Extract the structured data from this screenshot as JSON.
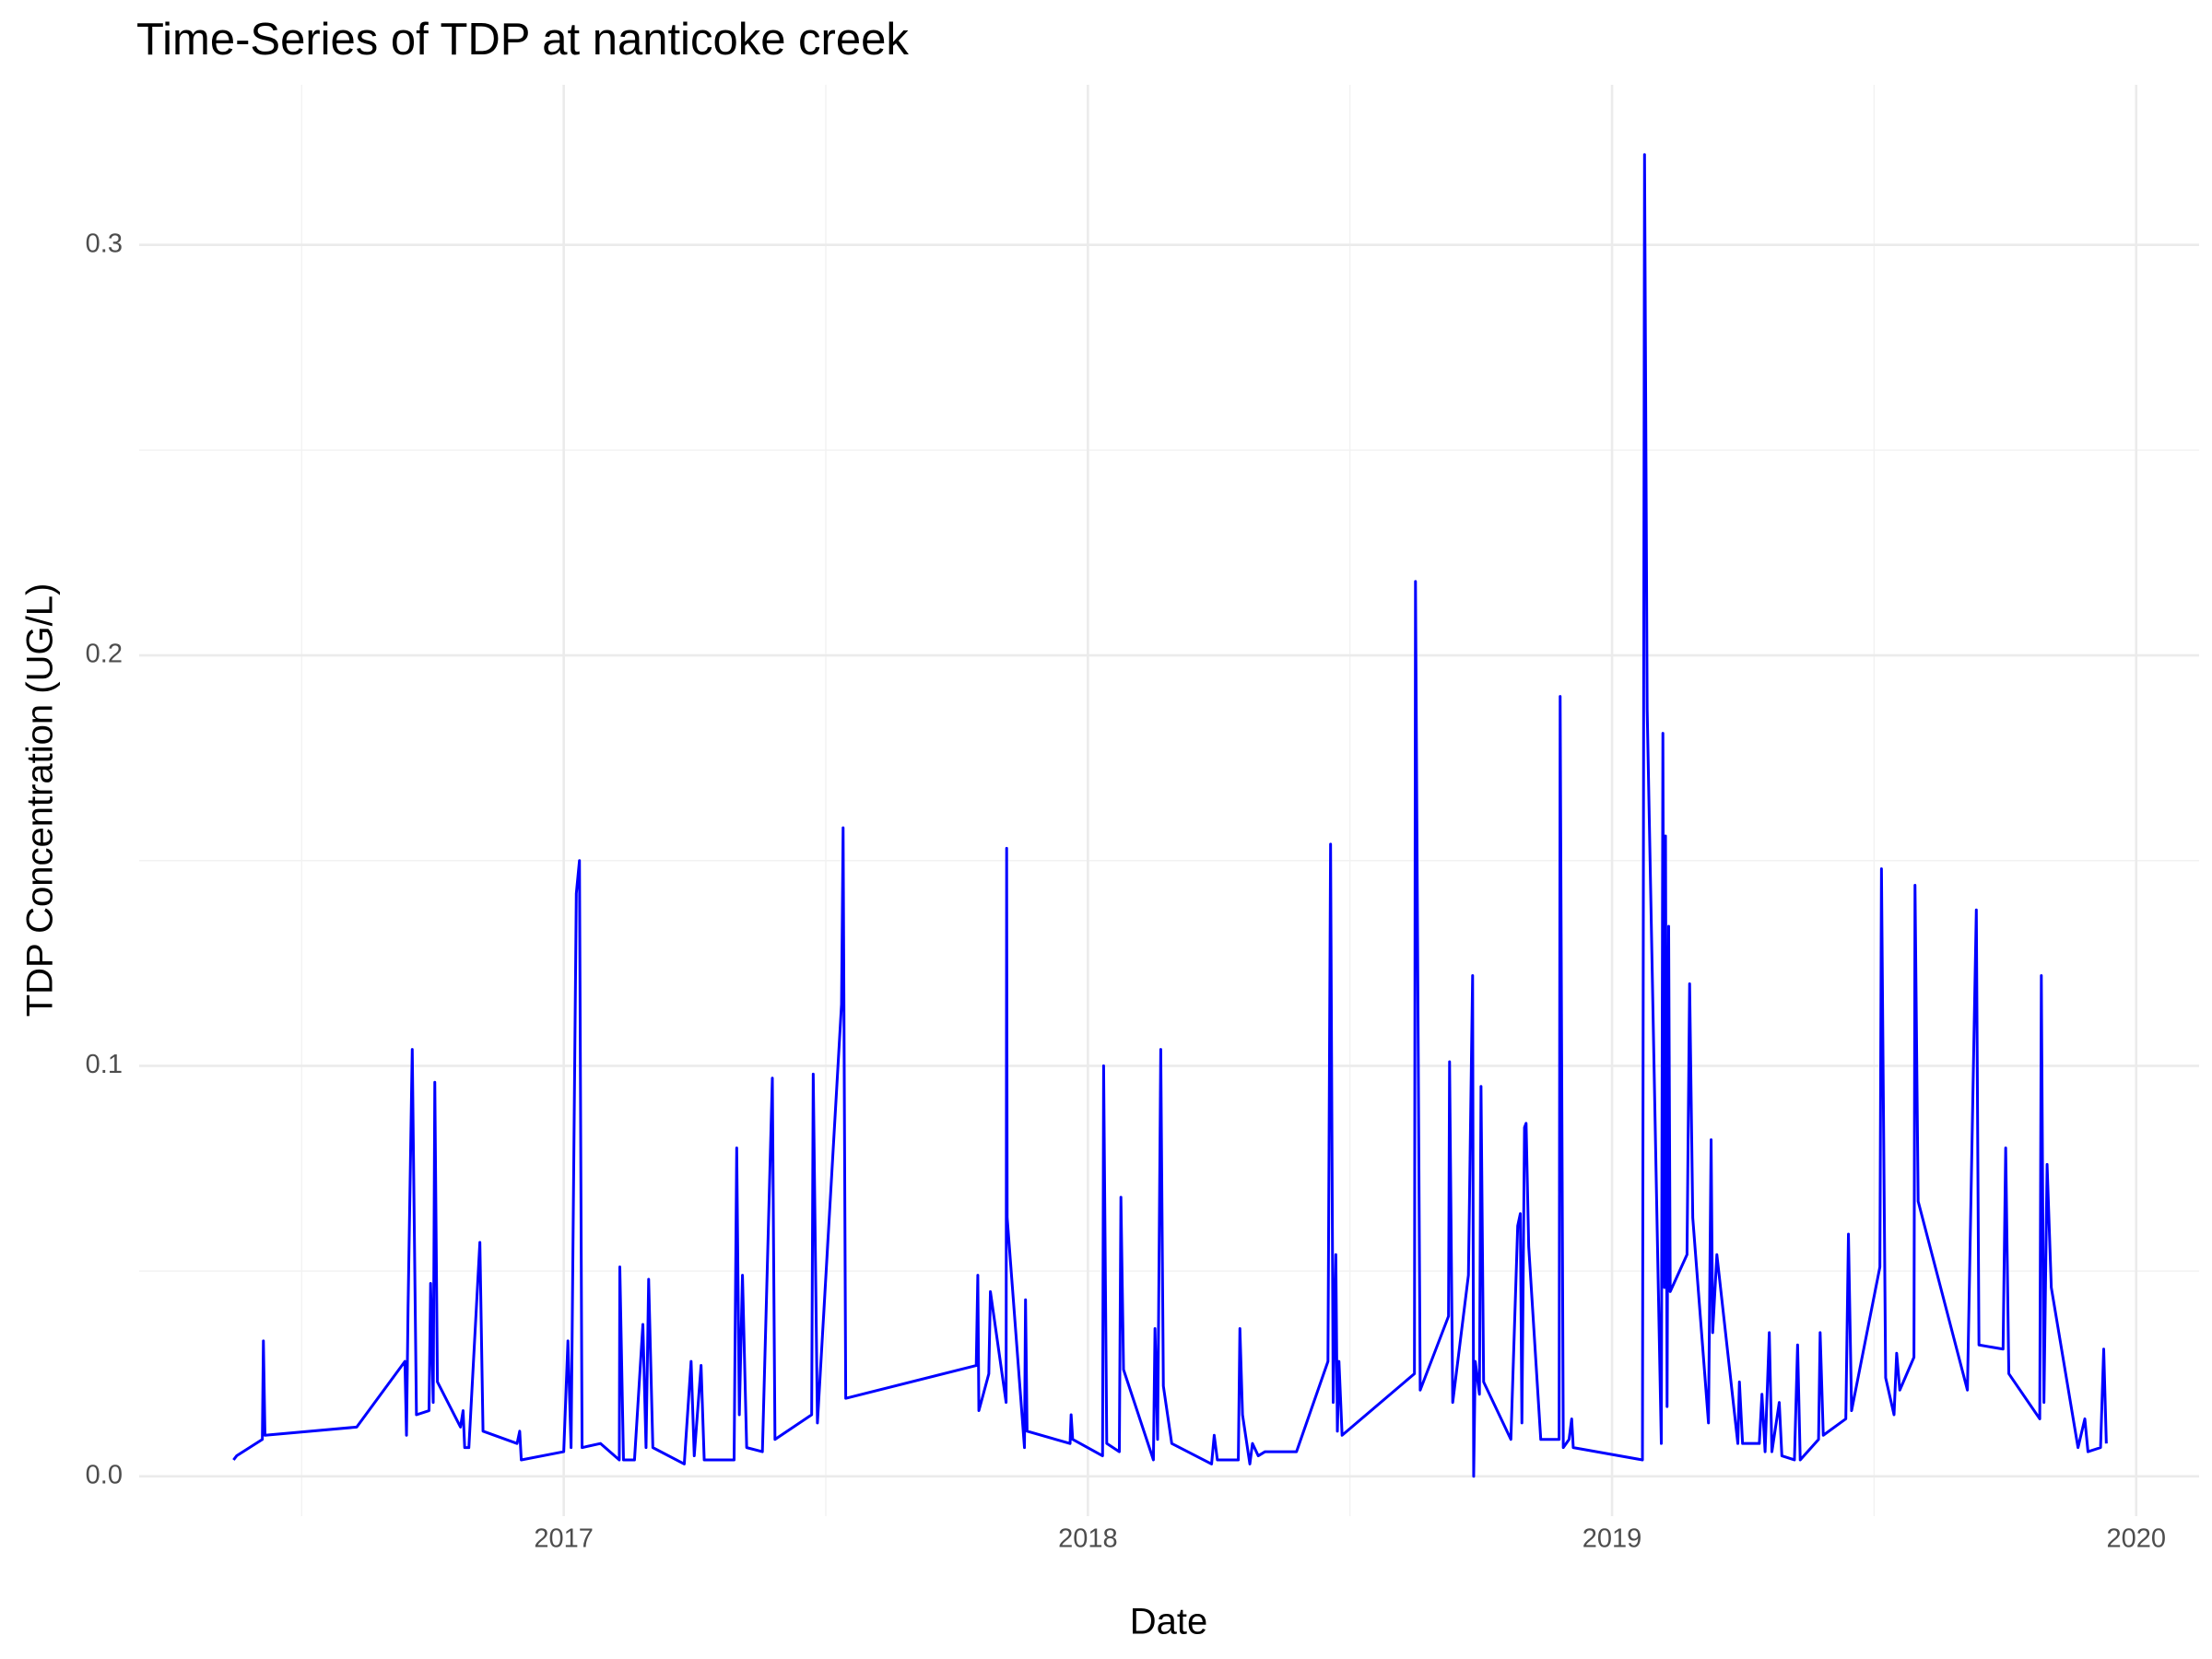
{
  "chart_data": {
    "type": "line",
    "title": "Time-Series of TDP at nanticoke creek",
    "x_label": "Date",
    "y_label": "TDP Concentration (UG/L)",
    "color": "#0000ff",
    "grid": true,
    "xlim": [
      2016.19,
      2020.12
    ],
    "ylim": [
      -0.0097,
      0.339
    ],
    "xticks": [
      2017,
      2018,
      2019,
      2020
    ],
    "yticks": [
      {
        "value": 0,
        "label": "0.0"
      },
      0.1,
      0.2,
      0.3
    ],
    "xminor": [
      2016.5,
      2017.5,
      2018.5,
      2019.5
    ],
    "yminor": [
      0.05,
      0.15,
      0.25
    ],
    "x": [
      2016.37,
      2016.376,
      2016.425,
      2016.427,
      2016.43,
      2016.605,
      2016.697,
      2016.7,
      2016.703,
      2016.711,
      2016.719,
      2016.743,
      2016.746,
      2016.751,
      2016.754,
      2016.759,
      2016.803,
      2016.808,
      2016.811,
      2016.819,
      2016.84,
      2016.846,
      2016.911,
      2016.916,
      2016.919,
      2017.0,
      2017.008,
      2017.014,
      2017.024,
      2017.03,
      2017.035,
      2017.07,
      2017.106,
      2017.107,
      2017.114,
      2017.135,
      2017.151,
      2017.157,
      2017.162,
      2017.17,
      2017.23,
      2017.233,
      2017.243,
      2017.249,
      2017.262,
      2017.268,
      2017.325,
      2017.33,
      2017.335,
      2017.341,
      2017.349,
      2017.379,
      2017.398,
      2017.403,
      2017.473,
      2017.476,
      2017.484,
      2017.53,
      2017.533,
      2017.538,
      2017.787,
      2017.79,
      2017.792,
      2017.811,
      2017.814,
      2017.844,
      2017.845,
      2017.846,
      2017.879,
      2017.881,
      2017.884,
      2017.966,
      2017.968,
      2017.971,
      2018.028,
      2018.03,
      2018.036,
      2018.06,
      2018.063,
      2018.068,
      2018.125,
      2018.128,
      2018.133,
      2018.139,
      2018.144,
      2018.16,
      2018.236,
      2018.241,
      2018.247,
      2018.252,
      2018.287,
      2018.29,
      2018.295,
      2018.309,
      2018.314,
      2018.325,
      2018.338,
      2018.398,
      2018.458,
      2018.463,
      2018.468,
      2018.473,
      2018.476,
      2018.479,
      2018.485,
      2018.623,
      2018.625,
      2018.634,
      2018.688,
      2018.69,
      2018.696,
      2018.726,
      2018.734,
      2018.736,
      2018.739,
      2018.747,
      2018.75,
      2018.755,
      2018.807,
      2018.82,
      2018.825,
      2018.828,
      2018.833,
      2018.836,
      2018.841,
      2018.864,
      2018.899,
      2018.901,
      2018.907,
      2018.918,
      2018.923,
      2018.926,
      2019.058,
      2019.062,
      2019.067,
      2019.094,
      2019.097,
      2019.1,
      2019.102,
      2019.105,
      2019.108,
      2019.111,
      2019.143,
      2019.148,
      2019.154,
      2019.184,
      2019.189,
      2019.192,
      2019.2,
      2019.24,
      2019.243,
      2019.249,
      2019.281,
      2019.286,
      2019.292,
      2019.3,
      2019.305,
      2019.319,
      2019.324,
      2019.348,
      2019.354,
      2019.359,
      2019.394,
      2019.397,
      2019.403,
      2019.446,
      2019.451,
      2019.457,
      2019.511,
      2019.514,
      2019.522,
      2019.538,
      2019.543,
      2019.549,
      2019.576,
      2019.578,
      2019.584,
      2019.678,
      2019.695,
      2019.7,
      2019.746,
      2019.751,
      2019.757,
      2019.816,
      2019.819,
      2019.824,
      2019.83,
      2019.838,
      2019.889,
      2019.902,
      2019.908,
      2019.932,
      2019.938,
      2019.943
    ],
    "values": [
      0.004,
      0.005,
      0.009,
      0.033,
      0.01,
      0.012,
      0.028,
      0.01,
      0.041,
      0.104,
      0.015,
      0.016,
      0.047,
      0.018,
      0.096,
      0.023,
      0.012,
      0.016,
      0.007,
      0.007,
      0.057,
      0.011,
      0.008,
      0.011,
      0.004,
      0.006,
      0.033,
      0.007,
      0.142,
      0.15,
      0.007,
      0.008,
      0.004,
      0.051,
      0.004,
      0.004,
      0.037,
      0.007,
      0.048,
      0.007,
      0.003,
      0.009,
      0.028,
      0.005,
      0.027,
      0.004,
      0.004,
      0.08,
      0.015,
      0.049,
      0.007,
      0.006,
      0.097,
      0.009,
      0.015,
      0.098,
      0.013,
      0.115,
      0.158,
      0.019,
      0.027,
      0.049,
      0.016,
      0.025,
      0.045,
      0.018,
      0.153,
      0.063,
      0.007,
      0.043,
      0.011,
      0.008,
      0.015,
      0.009,
      0.005,
      0.1,
      0.008,
      0.006,
      0.068,
      0.026,
      0.004,
      0.036,
      0.009,
      0.104,
      0.022,
      0.008,
      0.003,
      0.01,
      0.004,
      0.004,
      0.004,
      0.036,
      0.015,
      0.003,
      0.008,
      0.005,
      0.006,
      0.006,
      0.028,
      0.154,
      0.018,
      0.054,
      0.011,
      0.028,
      0.01,
      0.025,
      0.218,
      0.021,
      0.039,
      0.101,
      0.018,
      0.049,
      0.122,
      0.0,
      0.028,
      0.02,
      0.095,
      0.023,
      0.009,
      0.061,
      0.064,
      0.013,
      0.085,
      0.086,
      0.056,
      0.009,
      0.009,
      0.19,
      0.007,
      0.009,
      0.014,
      0.007,
      0.004,
      0.322,
      0.187,
      0.008,
      0.181,
      0.046,
      0.156,
      0.017,
      0.134,
      0.045,
      0.054,
      0.12,
      0.063,
      0.013,
      0.082,
      0.035,
      0.054,
      0.008,
      0.023,
      0.008,
      0.008,
      0.02,
      0.006,
      0.035,
      0.006,
      0.018,
      0.005,
      0.004,
      0.032,
      0.004,
      0.009,
      0.035,
      0.01,
      0.014,
      0.059,
      0.016,
      0.051,
      0.148,
      0.024,
      0.015,
      0.03,
      0.021,
      0.029,
      0.144,
      0.067,
      0.021,
      0.138,
      0.032,
      0.031,
      0.08,
      0.025,
      0.014,
      0.122,
      0.018,
      0.076,
      0.046,
      0.007,
      0.014,
      0.006,
      0.007,
      0.031,
      0.008
    ]
  }
}
